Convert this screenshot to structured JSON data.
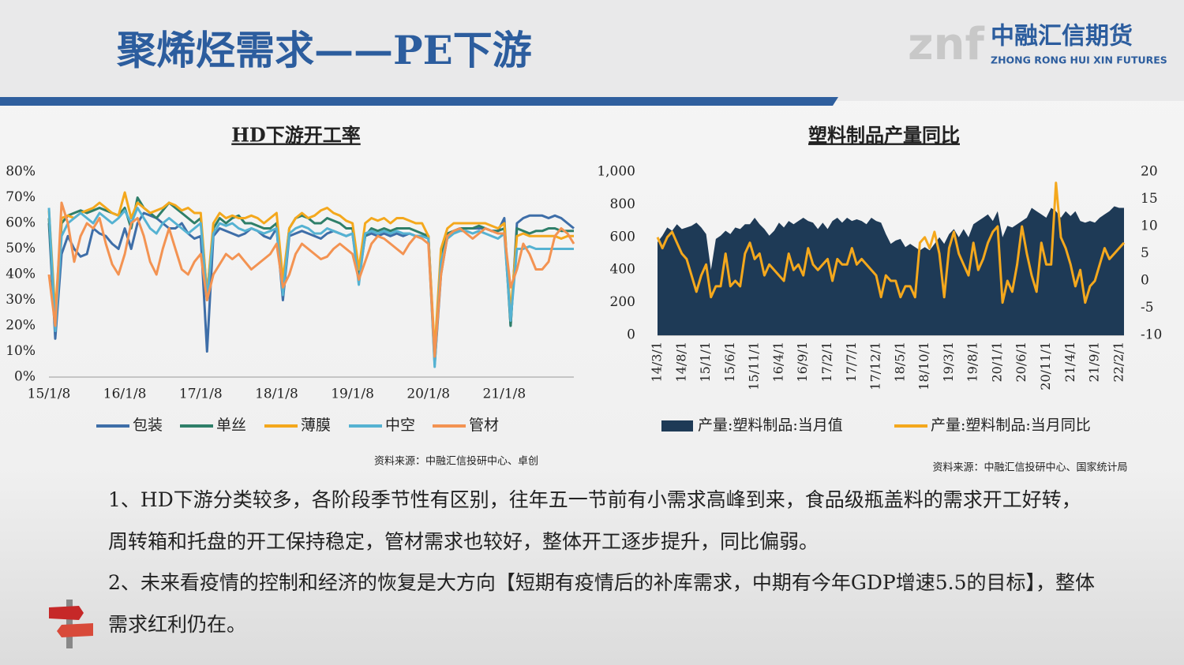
{
  "header": {
    "title": "聚烯烃需求——PE下游",
    "logo_mark": "znf",
    "logo_cn": "中融汇信期货",
    "logo_en": "ZHONG RONG HUI XIN FUTURES"
  },
  "chart_data": [
    {
      "type": "line",
      "title": "HD下游开工率",
      "source": "资料来源：中融汇信投研中心、卓创",
      "categories": [
        "15/1/8",
        null,
        null,
        null,
        null,
        null,
        null,
        null,
        null,
        null,
        null,
        null,
        "16/1/8",
        null,
        null,
        null,
        null,
        null,
        null,
        null,
        null,
        null,
        null,
        null,
        "17/1/8",
        null,
        null,
        null,
        null,
        null,
        null,
        null,
        null,
        null,
        null,
        null,
        "18/1/8",
        null,
        null,
        null,
        null,
        null,
        null,
        null,
        null,
        null,
        null,
        null,
        "19/1/8",
        null,
        null,
        null,
        null,
        null,
        null,
        null,
        null,
        null,
        null,
        null,
        "20/1/8",
        null,
        null,
        null,
        null,
        null,
        null,
        null,
        null,
        null,
        null,
        null,
        "21/1/8",
        null,
        null,
        null,
        null,
        null,
        null,
        null,
        null,
        null,
        null,
        null
      ],
      "ylim": [
        0,
        80
      ],
      "yticks": [
        {
          "value": 0,
          "label": "0%"
        },
        {
          "value": 10,
          "label": "10%"
        },
        {
          "value": 20,
          "label": "20%"
        },
        {
          "value": 30,
          "label": "30%"
        },
        {
          "value": 40,
          "label": "40%"
        },
        {
          "value": 50,
          "label": "50%"
        },
        {
          "value": 60,
          "label": "60%"
        },
        {
          "value": 70,
          "label": "70%"
        },
        {
          "value": 80,
          "label": "80%"
        }
      ],
      "grid": false,
      "series": [
        {
          "name": "包装",
          "color": "#3e6ea8",
          "values": [
            60,
            15,
            48,
            55,
            50,
            47,
            48,
            58,
            56,
            55,
            52,
            50,
            58,
            50,
            60,
            64,
            63,
            62,
            60,
            58,
            58,
            60,
            56,
            54,
            55,
            10,
            55,
            58,
            57,
            56,
            55,
            56,
            58,
            57,
            55,
            54,
            58,
            30,
            55,
            56,
            57,
            56,
            55,
            54,
            56,
            57,
            56,
            55,
            56,
            38,
            55,
            56,
            55,
            56,
            55,
            56,
            55,
            56,
            55,
            55,
            55,
            5,
            40,
            55,
            57,
            58,
            58,
            58,
            58,
            58,
            57,
            57,
            62,
            20,
            60,
            62,
            63,
            63,
            63,
            62,
            63,
            62,
            60,
            58
          ]
        },
        {
          "name": "单丝",
          "color": "#2f7f69",
          "values": [
            62,
            20,
            60,
            63,
            64,
            65,
            64,
            65,
            66,
            65,
            64,
            63,
            66,
            58,
            70,
            66,
            64,
            62,
            65,
            68,
            66,
            64,
            62,
            60,
            62,
            32,
            58,
            62,
            60,
            62,
            63,
            60,
            60,
            59,
            58,
            58,
            60,
            35,
            58,
            62,
            63,
            62,
            60,
            60,
            62,
            61,
            60,
            58,
            58,
            40,
            55,
            58,
            57,
            58,
            57,
            58,
            58,
            58,
            57,
            56,
            55,
            8,
            48,
            56,
            57,
            58,
            58,
            58,
            59,
            58,
            57,
            57,
            58,
            20,
            58,
            57,
            56,
            57,
            57,
            58,
            58,
            57,
            57,
            57
          ]
        },
        {
          "name": "薄膜",
          "color": "#f4a81d",
          "values": [
            65,
            25,
            62,
            63,
            62,
            64,
            65,
            66,
            68,
            66,
            64,
            63,
            72,
            62,
            68,
            66,
            64,
            65,
            66,
            68,
            67,
            65,
            66,
            64,
            64,
            32,
            60,
            64,
            62,
            63,
            62,
            62,
            63,
            62,
            60,
            62,
            64,
            38,
            58,
            62,
            64,
            62,
            63,
            65,
            66,
            64,
            63,
            61,
            60,
            42,
            60,
            62,
            61,
            62,
            60,
            62,
            62,
            61,
            60,
            60,
            55,
            10,
            50,
            58,
            60,
            60,
            60,
            60,
            60,
            60,
            59,
            58,
            60,
            25,
            55,
            56,
            55,
            55,
            55,
            55,
            55,
            54,
            55,
            55
          ]
        },
        {
          "name": "中空",
          "color": "#55b2d2",
          "values": [
            66,
            18,
            55,
            60,
            62,
            64,
            62,
            60,
            64,
            62,
            60,
            62,
            65,
            60,
            66,
            62,
            58,
            56,
            60,
            62,
            60,
            58,
            56,
            58,
            60,
            30,
            56,
            60,
            59,
            60,
            58,
            57,
            58,
            57,
            56,
            57,
            58,
            32,
            56,
            58,
            59,
            58,
            56,
            56,
            58,
            57,
            56,
            55,
            56,
            36,
            56,
            57,
            56,
            57,
            56,
            57,
            56,
            56,
            55,
            55,
            54,
            4,
            45,
            54,
            56,
            57,
            57,
            56,
            57,
            56,
            55,
            54,
            56,
            22,
            50,
            50,
            51,
            50,
            50,
            50,
            50,
            50,
            50,
            50
          ]
        },
        {
          "name": "管材",
          "color": "#f39352",
          "values": [
            40,
            20,
            68,
            60,
            45,
            55,
            60,
            58,
            62,
            52,
            44,
            40,
            48,
            60,
            62,
            55,
            45,
            40,
            50,
            58,
            50,
            42,
            40,
            45,
            48,
            30,
            40,
            44,
            48,
            46,
            48,
            45,
            42,
            44,
            46,
            48,
            52,
            35,
            40,
            48,
            52,
            50,
            48,
            46,
            47,
            50,
            52,
            50,
            48,
            38,
            45,
            52,
            55,
            54,
            52,
            50,
            48,
            52,
            55,
            54,
            52,
            8,
            40,
            55,
            57,
            58,
            56,
            54,
            56,
            58,
            57,
            56,
            56,
            35,
            42,
            52,
            48,
            42,
            42,
            45,
            55,
            58,
            56,
            52
          ]
        }
      ]
    },
    {
      "type": "line",
      "title": "塑料制品产量同比",
      "source": "资料来源：中融汇信投研中心、国家统计局",
      "categories": [
        "14/3/1",
        null,
        null,
        null,
        null,
        "14/8/1",
        null,
        null,
        null,
        null,
        "15/1/1",
        null,
        null,
        null,
        null,
        "15/6/1",
        null,
        null,
        null,
        null,
        "15/11/1",
        null,
        null,
        null,
        null,
        "16/4/1",
        null,
        null,
        null,
        null,
        "16/9/1",
        null,
        null,
        null,
        null,
        "17/2/1",
        null,
        null,
        null,
        null,
        "17/7/1",
        null,
        null,
        null,
        null,
        "17/12/1",
        null,
        null,
        null,
        null,
        "18/5/1",
        null,
        null,
        null,
        null,
        "18/10/1",
        null,
        null,
        null,
        null,
        "19/3/1",
        null,
        null,
        null,
        null,
        "19/8/1",
        null,
        null,
        null,
        null,
        "20/1/1",
        null,
        null,
        null,
        null,
        "20/6/1",
        null,
        null,
        null,
        null,
        "20/11/1",
        null,
        null,
        null,
        null,
        "21/4/1",
        null,
        null,
        null,
        null,
        "21/9/1",
        null,
        null,
        null,
        null,
        "22/2/1",
        null
      ],
      "ylim": [
        0,
        1000
      ],
      "yticks": [
        0,
        200,
        400,
        600,
        800,
        {
          "value": 1000,
          "label": "1,000"
        }
      ],
      "y2lim": [
        -10,
        20
      ],
      "y2ticks": [
        -10,
        -5,
        0,
        5,
        10,
        15,
        20
      ],
      "grid": false,
      "series": [
        {
          "name": "产量:塑料制品:当月值",
          "type": "area",
          "color": "#1e3a56",
          "values": [
            570,
            610,
            660,
            640,
            680,
            650,
            660,
            670,
            690,
            660,
            620,
            400,
            590,
            610,
            640,
            620,
            660,
            650,
            680,
            680,
            720,
            680,
            650,
            610,
            640,
            690,
            660,
            700,
            680,
            700,
            720,
            700,
            690,
            650,
            690,
            650,
            700,
            720,
            690,
            720,
            700,
            710,
            700,
            680,
            720,
            700,
            690,
            620,
            560,
            580,
            590,
            540,
            560,
            540,
            520,
            540,
            520,
            560,
            600,
            560,
            620,
            650,
            600,
            650,
            600,
            680,
            700,
            720,
            740,
            700,
            760,
            600,
            670,
            660,
            680,
            700,
            720,
            780,
            760,
            740,
            720,
            780,
            760,
            720,
            760,
            730,
            760,
            700,
            690,
            700,
            690,
            720,
            740,
            760,
            790,
            780,
            780
          ]
        },
        {
          "name": "产量:塑料制品:当月同比",
          "type": "line",
          "axis": "y2",
          "color": "#f4a81d",
          "values": [
            8,
            6,
            8,
            9,
            7,
            5,
            4,
            1,
            -2,
            1,
            3,
            -3,
            -1,
            -1,
            5,
            -1,
            0,
            -1,
            5,
            7,
            4,
            5,
            1,
            3,
            2,
            1,
            0,
            5,
            2,
            3,
            1,
            6,
            3,
            2,
            3,
            4,
            0,
            4,
            3,
            3,
            6,
            3,
            4,
            3,
            2,
            1,
            -3,
            1,
            0,
            0,
            -3,
            -1,
            -1,
            -3,
            7,
            8,
            6,
            9,
            5,
            -3,
            6,
            9,
            5,
            3,
            1,
            7,
            2,
            4,
            7,
            9,
            10,
            -4,
            0,
            -2,
            3,
            10,
            5,
            1,
            -2,
            7,
            3,
            3,
            18,
            8,
            6,
            3,
            -1,
            2,
            -4,
            -1,
            0,
            3,
            6,
            4,
            5,
            6,
            7
          ]
        }
      ]
    }
  ],
  "paragraphs": [
    "1、HD下游分类较多，各阶段季节性有区别，往年五一节前有小需求高峰到来，食品级瓶盖料的需求开工好转，周转箱和托盘的开工保持稳定，管材需求也较好，整体开工逐步提升，同比偏弱。",
    "2、未来看疫情的控制和经济的恢复是大方向【短期有疫情后的补库需求，中期有今年GDP增速5.5的目标】，整体需求红利仍在。"
  ]
}
